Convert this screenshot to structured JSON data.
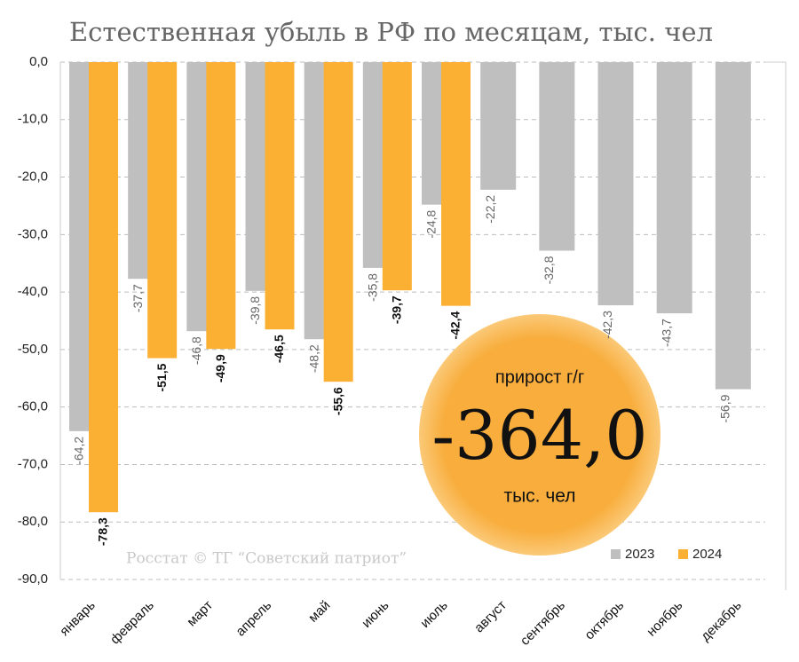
{
  "chart_data": {
    "type": "bar",
    "title": "Естественная убыль в РФ по месяцам, тыс. чел",
    "categories": [
      "январь",
      "февраль",
      "март",
      "апрель",
      "май",
      "июнь",
      "июль",
      "август",
      "сентябрь",
      "октябрь",
      "ноябрь",
      "декабрь"
    ],
    "series": [
      {
        "name": "2023",
        "color": "#bfbfbf",
        "values": [
          -64.2,
          -37.7,
          -46.8,
          -39.8,
          -48.2,
          -35.8,
          -24.8,
          -22.2,
          -32.8,
          -42.3,
          -43.7,
          -56.9
        ],
        "value_labels": [
          "-64,2",
          "-37,7",
          "-46,8",
          "-39,8",
          "-48,2",
          "-35,8",
          "-24,8",
          "-22,2",
          "-32,8",
          "-42,3",
          "-43,7",
          "-56,9"
        ]
      },
      {
        "name": "2024",
        "color": "#fbb034",
        "values": [
          -78.3,
          -51.5,
          -49.9,
          -46.5,
          -55.6,
          -39.7,
          -42.4,
          null,
          null,
          null,
          null,
          null
        ],
        "value_labels": [
          "-78,3",
          "-51,5",
          "-49,9",
          "-46,5",
          "-55,6",
          "-39,7",
          "-42,4",
          null,
          null,
          null,
          null,
          null
        ]
      }
    ],
    "ylim": [
      -90,
      0
    ],
    "yticks": [
      {
        "value": 0,
        "label": "0,0"
      },
      {
        "value": -10,
        "label": "-10,0"
      },
      {
        "value": -20,
        "label": "-20,0"
      },
      {
        "value": -30,
        "label": "-30,0"
      },
      {
        "value": -40,
        "label": "-40,0"
      },
      {
        "value": -50,
        "label": "-50,0"
      },
      {
        "value": -60,
        "label": "-60,0"
      },
      {
        "value": -70,
        "label": "-70,0"
      },
      {
        "value": -80,
        "label": "-80,0"
      },
      {
        "value": -90,
        "label": "-90,0"
      }
    ],
    "grid": true,
    "legend": "bottom-right",
    "annotation": {
      "text": "прирост г/г",
      "value": "-364,0",
      "unit": "тыс. чел"
    },
    "source": "Росстат © ТГ “Советский патриот”"
  }
}
